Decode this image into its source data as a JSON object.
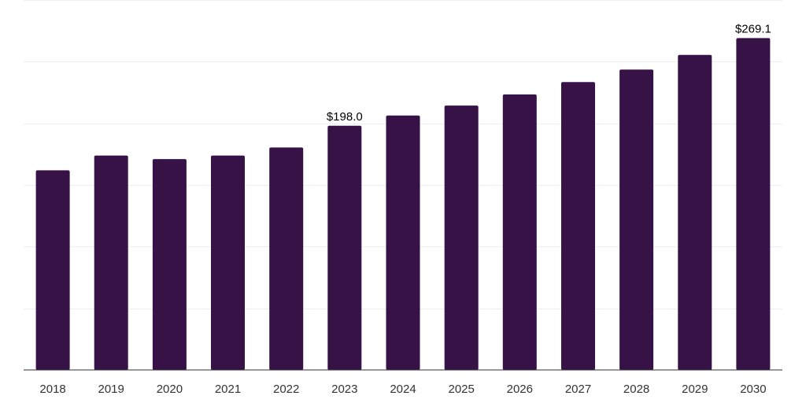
{
  "chart_data": {
    "type": "bar",
    "categories": [
      "2018",
      "2019",
      "2020",
      "2021",
      "2022",
      "2023",
      "2024",
      "2025",
      "2026",
      "2027",
      "2028",
      "2029",
      "2030"
    ],
    "values": [
      161.9,
      173.9,
      171.0,
      173.9,
      180.4,
      198.0,
      206.3,
      214.4,
      223.4,
      233.5,
      243.6,
      255.5,
      269.1
    ],
    "data_labels": [
      {
        "index": 5,
        "text": "$198.0"
      },
      {
        "index": 12,
        "text": "$269.1"
      }
    ],
    "ylim": [
      0,
      300
    ],
    "gridlines": [
      0,
      50,
      100,
      150,
      200,
      250,
      300
    ],
    "grid": true,
    "legend": "none",
    "bar_color": "#371247"
  }
}
